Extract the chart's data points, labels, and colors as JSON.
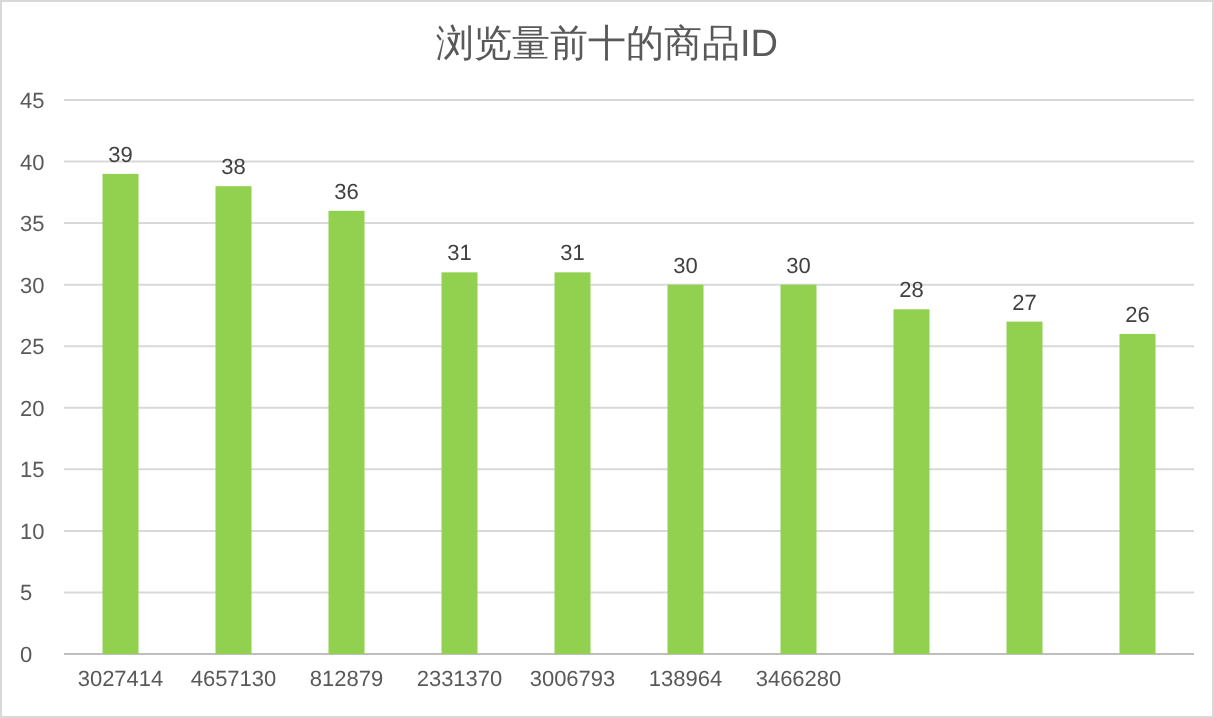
{
  "chart_data": {
    "type": "bar",
    "title": "浏览量前十的商品ID",
    "categories": [
      "3027414",
      "4657130",
      "812879",
      "2331370",
      "3006793",
      "138964",
      "3466280",
      null,
      null,
      null
    ],
    "values": [
      39,
      38,
      36,
      31,
      31,
      30,
      30,
      28,
      27,
      26
    ],
    "color": "#92d050",
    "ylim": [
      0,
      45
    ],
    "yticks": [
      0,
      5,
      10,
      15,
      20,
      25,
      30,
      35,
      40,
      45
    ],
    "grid": "y",
    "data_labels": true
  }
}
